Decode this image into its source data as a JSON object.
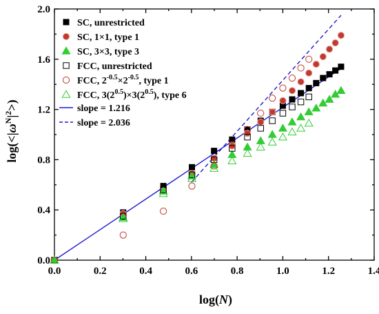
{
  "chart_data": {
    "type": "scatter",
    "title": "",
    "xlabel": {
      "prefix": "log(",
      "italic": "N",
      "suffix": ")"
    },
    "ylabel": {
      "prefix": "log(<|",
      "italic": "ω",
      "sup": "N",
      "suffix": "|",
      "sup2": "2",
      "end": ">)"
    },
    "xlim": [
      0.0,
      1.4
    ],
    "ylim": [
      0.0,
      2.0
    ],
    "xticks": [
      "0.0",
      "0.2",
      "0.4",
      "0.6",
      "0.8",
      "1.0",
      "1.2",
      "1.4"
    ],
    "yticks": [
      "0.0",
      "0.4",
      "0.8",
      "1.2",
      "1.6",
      "2.0"
    ],
    "grid": false,
    "legend_position": "top-left",
    "series": [
      {
        "name": "SC, unrestricted",
        "marker": "square-filled",
        "color": "#000000",
        "x": [
          0,
          0.301,
          0.477,
          0.602,
          0.699,
          0.778,
          0.845,
          0.903,
          0.954,
          1.0,
          1.041,
          1.079,
          1.114,
          1.146,
          1.176,
          1.204,
          1.23,
          1.255
        ],
        "y": [
          0,
          0.38,
          0.59,
          0.74,
          0.87,
          0.96,
          1.04,
          1.11,
          1.18,
          1.23,
          1.28,
          1.33,
          1.37,
          1.41,
          1.45,
          1.48,
          1.51,
          1.54
        ]
      },
      {
        "name": "SC, 1×1, type 1",
        "marker": "circle-filled",
        "color": "#c0392b",
        "x": [
          0,
          0.301,
          0.477,
          0.602,
          0.699,
          0.778,
          0.845,
          0.903,
          0.954,
          1.0,
          1.041,
          1.079,
          1.114,
          1.146,
          1.176,
          1.204,
          1.23,
          1.255
        ],
        "y": [
          0,
          0.37,
          0.55,
          0.69,
          0.81,
          0.91,
          1.01,
          1.1,
          1.18,
          1.27,
          1.35,
          1.42,
          1.49,
          1.56,
          1.62,
          1.68,
          1.73,
          1.79
        ]
      },
      {
        "name": "SC, 3×3, type 3",
        "marker": "triangle-filled",
        "color": "#33cc33",
        "x": [
          0,
          0.301,
          0.477,
          0.602,
          0.699,
          0.778,
          0.845,
          0.903,
          0.954,
          1.0,
          1.041,
          1.079,
          1.114,
          1.146,
          1.176,
          1.204,
          1.23,
          1.255
        ],
        "y": [
          0,
          0.34,
          0.55,
          0.67,
          0.76,
          0.84,
          0.9,
          0.95,
          1.0,
          1.05,
          1.1,
          1.14,
          1.18,
          1.21,
          1.25,
          1.28,
          1.32,
          1.35
        ]
      },
      {
        "name": "FCC, unrestricted",
        "marker": "square-open",
        "color": "#000000",
        "x": [
          0,
          0.301,
          0.477,
          0.602,
          0.699,
          0.778,
          0.845,
          0.903,
          0.954,
          1.0,
          1.041,
          1.079,
          1.114
        ],
        "y": [
          0,
          0.35,
          0.56,
          0.68,
          0.8,
          0.89,
          0.98,
          1.05,
          1.11,
          1.17,
          1.22,
          1.26,
          1.3
        ]
      },
      {
        "name": "FCC, 2⁻⁰·⁵×2⁻⁰·⁵, type 1",
        "legend_parts": [
          [
            "FCC, 2",
            ""
          ],
          [
            "-0.5",
            "sup"
          ],
          [
            "×2",
            ""
          ],
          [
            "-0.5",
            "sup"
          ],
          [
            ", type 1",
            ""
          ]
        ],
        "marker": "circle-open",
        "color": "#c0392b",
        "x": [
          0,
          0.301,
          0.477,
          0.602,
          0.699,
          0.778,
          0.845,
          0.903,
          0.954,
          1.0,
          1.041,
          1.079,
          1.114
        ],
        "y": [
          0,
          0.2,
          0.39,
          0.59,
          0.75,
          0.92,
          1.04,
          1.17,
          1.29,
          1.37,
          1.45,
          1.53,
          1.6
        ]
      },
      {
        "name": "FCC, 3(2⁰·⁵)×3(2⁰·⁵), type 6",
        "legend_parts": [
          [
            "FCC, 3(2",
            ""
          ],
          [
            "0.5",
            "sup"
          ],
          [
            ")×3(2",
            ""
          ],
          [
            "0.5",
            "sup"
          ],
          [
            "), type 6",
            ""
          ]
        ],
        "marker": "triangle-open",
        "color": "#33cc33",
        "x": [
          0,
          0.301,
          0.477,
          0.602,
          0.699,
          0.778,
          0.845,
          0.903,
          0.954,
          1.0,
          1.041,
          1.079,
          1.114
        ],
        "y": [
          0,
          0.33,
          0.53,
          0.65,
          0.73,
          0.79,
          0.85,
          0.9,
          0.94,
          0.98,
          1.02,
          1.05,
          1.09
        ]
      }
    ],
    "lines": [
      {
        "name": "slope = 1.216",
        "style": "solid",
        "color": "#1a1acc",
        "slope": 1.216,
        "x": [
          0,
          1.255
        ]
      },
      {
        "name": "slope = 2.036",
        "style": "dashed",
        "color": "#1a1acc",
        "slope": 2.036,
        "x": [
          0.6,
          1.255
        ],
        "y": [
          0.62,
          1.95
        ]
      }
    ]
  }
}
